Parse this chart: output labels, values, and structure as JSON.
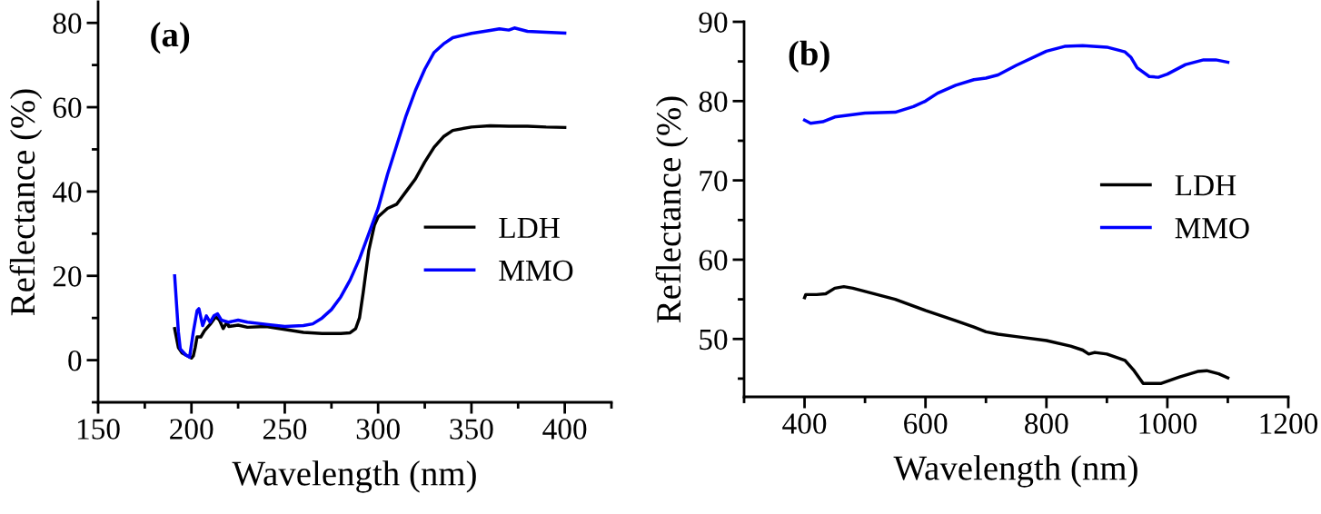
{
  "chart_data": [
    {
      "type": "line",
      "xlabel": "Wavelength (nm)",
      "ylabel": "Reflectance (%)",
      "annotations": [
        "(a)"
      ],
      "xlim": [
        150,
        425
      ],
      "xticks": [
        150,
        200,
        250,
        300,
        350,
        400
      ],
      "ylim": [
        -10,
        85
      ],
      "yticks": [
        0,
        20,
        40,
        60,
        80
      ],
      "grid": false,
      "legend": "bottom right",
      "marker": "none",
      "line_style": "solid",
      "series": [
        {
          "name": "LDH",
          "color": "#000000",
          "x": [
            191,
            193,
            195,
            198,
            200,
            201,
            202,
            203,
            205,
            207,
            210,
            213,
            215,
            217,
            219,
            220,
            225,
            230,
            240,
            250,
            260,
            270,
            280,
            285,
            288,
            290,
            292,
            295,
            298,
            300,
            305,
            310,
            315,
            320,
            325,
            330,
            335,
            340,
            350,
            360,
            370,
            380,
            390,
            400
          ],
          "values": [
            7.5,
            3,
            1.7,
            1,
            0.5,
            1,
            3,
            5.5,
            5.5,
            7,
            8.5,
            10.3,
            9.5,
            7.5,
            9,
            8,
            8.3,
            7.8,
            8,
            7.3,
            6.6,
            6.3,
            6.3,
            6.5,
            7.5,
            10,
            16,
            26,
            32,
            34,
            36,
            37,
            40,
            43,
            47,
            50.5,
            53,
            54.5,
            55.3,
            55.6,
            55.5,
            55.5,
            55.3,
            55.2
          ]
        },
        {
          "name": "MMO",
          "color": "#0000ff",
          "x": [
            191,
            193,
            194,
            197,
            199,
            201,
            203,
            204,
            206,
            208,
            210,
            212,
            214,
            216,
            220,
            225,
            230,
            240,
            250,
            260,
            265,
            270,
            275,
            280,
            285,
            290,
            295,
            300,
            305,
            310,
            315,
            320,
            325,
            330,
            335,
            340,
            350,
            360,
            365,
            370,
            373,
            380,
            390,
            400
          ],
          "values": [
            20,
            6.7,
            2.7,
            1.2,
            0.7,
            6.7,
            11.7,
            12.2,
            8.2,
            10.5,
            9,
            10.5,
            11,
            9.5,
            9,
            9.5,
            9,
            8.5,
            8,
            8.2,
            8.6,
            10,
            12,
            15,
            19,
            24,
            30,
            36,
            44,
            51,
            58,
            64,
            69,
            73,
            75,
            76.5,
            77.5,
            78.2,
            78.6,
            78.3,
            78.8,
            78,
            77.8,
            77.6
          ]
        }
      ]
    },
    {
      "type": "line",
      "xlabel": "Wavelength (nm)",
      "ylabel": "Reflectance (%)",
      "annotations": [
        "(b)"
      ],
      "xlim": [
        300,
        1200
      ],
      "xticks": [
        400,
        600,
        800,
        1000,
        1200
      ],
      "ylim": [
        42.7,
        90
      ],
      "yticks": [
        50,
        60,
        70,
        80,
        90
      ],
      "grid": false,
      "legend": "right",
      "marker": "none",
      "line_style": "solid",
      "series": [
        {
          "name": "LDH",
          "color": "#000000",
          "x": [
            400,
            402,
            420,
            435,
            450,
            465,
            480,
            500,
            550,
            600,
            650,
            680,
            700,
            720,
            750,
            800,
            840,
            860,
            870,
            880,
            900,
            930,
            945,
            960,
            990,
            1020,
            1050,
            1065,
            1085,
            1100
          ],
          "values": [
            55.2,
            55.6,
            55.6,
            55.7,
            56.4,
            56.6,
            56.4,
            56,
            55,
            53.6,
            52.3,
            51.5,
            50.9,
            50.6,
            50.3,
            49.8,
            49.1,
            48.6,
            48.1,
            48.3,
            48.1,
            47.3,
            46,
            44.4,
            44.4,
            45.2,
            45.9,
            46,
            45.6,
            45.1
          ]
        },
        {
          "name": "MMO",
          "color": "#0000ff",
          "x": [
            400,
            410,
            430,
            450,
            500,
            550,
            580,
            600,
            620,
            650,
            680,
            700,
            720,
            750,
            800,
            830,
            860,
            900,
            930,
            940,
            950,
            970,
            985,
            1000,
            1030,
            1060,
            1080,
            1100
          ],
          "values": [
            77.6,
            77.2,
            77.4,
            78,
            78.5,
            78.6,
            79.3,
            80,
            81,
            82,
            82.7,
            82.9,
            83.3,
            84.5,
            86.3,
            86.9,
            87,
            86.8,
            86.2,
            85.5,
            84.2,
            83.1,
            83,
            83.4,
            84.6,
            85.2,
            85.2,
            84.9
          ]
        }
      ]
    }
  ]
}
